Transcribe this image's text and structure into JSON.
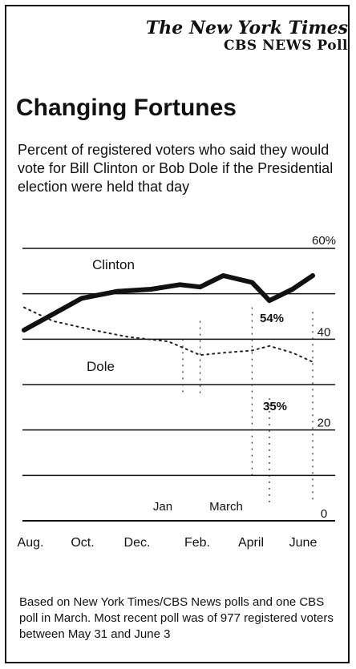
{
  "brand": {
    "newspaper": "The New York Times",
    "poll": "CBS NEWS Poll"
  },
  "chart_data": {
    "type": "line",
    "title": "Changing Fortunes",
    "subtitle": "Percent of registered voters who said they would vote for Bill Clinton or Bob Dole if the Presidential election were held that day",
    "ylim": [
      0,
      60
    ],
    "y_ticks": [
      {
        "value": 60,
        "label": "60%"
      },
      {
        "value": 40,
        "label": "40"
      },
      {
        "value": 20,
        "label": "20"
      },
      {
        "value": 0,
        "label": "0"
      }
    ],
    "gridlines": [
      60,
      50,
      40,
      30,
      20,
      10,
      0
    ],
    "x_labels": [
      "Aug.",
      "Oct.",
      "Dec.",
      "Feb.",
      "April",
      "June"
    ],
    "inner_labels": [
      "Jan",
      "March"
    ],
    "series": [
      {
        "name": "Clinton",
        "x": [
          0.0,
          1.0,
          1.6,
          2.2,
          2.7,
          3.05,
          3.45,
          3.95,
          4.25,
          4.65,
          5.0
        ],
        "y": [
          42,
          49,
          50.5,
          51,
          52,
          51.5,
          54,
          52.5,
          48.5,
          51,
          54
        ],
        "end_label": "54%",
        "style": "solid"
      },
      {
        "name": "Dole",
        "x": [
          0.0,
          0.5,
          1.2,
          1.8,
          2.5,
          3.05,
          3.45,
          3.95,
          4.25,
          4.65,
          5.0
        ],
        "y": [
          47,
          44,
          42,
          40.5,
          39.5,
          36.5,
          37,
          37.5,
          38.5,
          37,
          35
        ],
        "end_label": "35%",
        "style": "dotted"
      }
    ]
  },
  "footnote": "Based on New York Times/CBS News polls and one CBS poll in March. Most recent poll was of 977 registered voters between May 31 and June 3"
}
